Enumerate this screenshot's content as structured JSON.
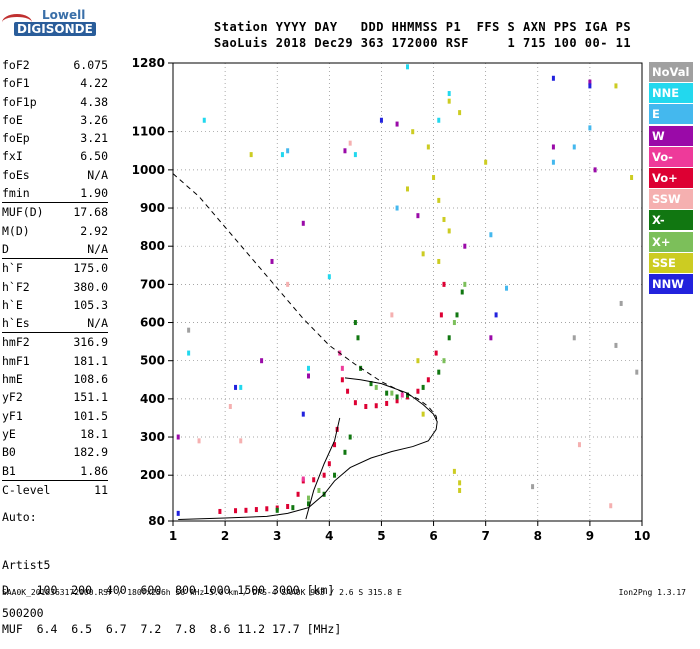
{
  "logo": {
    "line1": "Lowell",
    "line2": "DIGISONDE"
  },
  "header": {
    "row1": "Station YYYY DAY   DDD HHMMSS P1  FFS S AXN PPS IGA PS",
    "row2": "SaoLuis 2018 Dec29 363 172000 RSF     1 715 100 00- 11"
  },
  "params": [
    {
      "label": "foF2",
      "value": "6.075"
    },
    {
      "label": "foF1",
      "value": "4.22"
    },
    {
      "label": "foF1p",
      "value": "4.38"
    },
    {
      "label": "foE",
      "value": "3.26"
    },
    {
      "label": "foEp",
      "value": "3.21"
    },
    {
      "label": "fxI",
      "value": "6.50"
    },
    {
      "label": "foEs",
      "value": "N/A"
    },
    {
      "label": "fmin",
      "value": "1.90"
    },
    {
      "label": "MUF(D)",
      "value": "17.68"
    },
    {
      "label": "M(D)",
      "value": "2.92"
    },
    {
      "label": "D",
      "value": "N/A"
    },
    {
      "label": "h`F",
      "value": "175.0"
    },
    {
      "label": "h`F2",
      "value": "380.0"
    },
    {
      "label": "h`E",
      "value": "105.3"
    },
    {
      "label": "h`Es",
      "value": "N/A"
    },
    {
      "label": "hmF2",
      "value": "316.9"
    },
    {
      "label": "hmF1",
      "value": "181.1"
    },
    {
      "label": "hmE",
      "value": "108.6"
    },
    {
      "label": "yF2",
      "value": "151.1"
    },
    {
      "label": "yF1",
      "value": "101.5"
    },
    {
      "label": "yE",
      "value": "18.1"
    },
    {
      "label": "B0",
      "value": "182.9"
    },
    {
      "label": "B1",
      "value": "1.86"
    },
    {
      "label": "C-level",
      "value": "11"
    }
  ],
  "auto": {
    "line1": "Auto:",
    "line2": "Artist5",
    "line3": "500200"
  },
  "prop_table": {
    "row1": "D    100  200  400  600  800 1000 1500 3000 [km]",
    "row2": "MUF  6.4  6.5  6.7  7.2  7.8  8.6 11.2 17.7 [MHz]"
  },
  "footer": "SAA0K_2018363172000.RSF / 180fx256h 50 kHz 5.0 km / DPS-4 SAA0K 903 / 2.6 S 315.8 E",
  "footer_version": "Ion2Png 1.3.17",
  "legend": [
    {
      "label": "NoVal",
      "color": "#a0a0a0"
    },
    {
      "label": "NNE",
      "color": "#22d8ee"
    },
    {
      "label": "E",
      "color": "#44b8ee"
    },
    {
      "label": "W",
      "color": "#9a0aa8"
    },
    {
      "label": "Vo-",
      "color": "#ee3a9a"
    },
    {
      "label": "Vo+",
      "color": "#dd0033"
    },
    {
      "label": "SSW",
      "color": "#f5b0b0"
    },
    {
      "label": "X-",
      "color": "#117711"
    },
    {
      "label": "X+",
      "color": "#7cbf5a"
    },
    {
      "label": "SSE",
      "color": "#cccc22"
    },
    {
      "label": "NNW",
      "color": "#2222dd"
    }
  ],
  "chart_data": {
    "type": "scatter",
    "xlim": [
      1,
      10
    ],
    "ylim": [
      80,
      1280
    ],
    "x_ticks": [
      "1",
      "2",
      "3",
      "4",
      "5",
      "6",
      "7",
      "8",
      "9",
      "10"
    ],
    "y_ticks": [
      "80",
      "200",
      "300",
      "400",
      "500",
      "600",
      "700",
      "800",
      "900",
      "1000",
      "1100",
      "1280"
    ],
    "grid": true,
    "series": [
      {
        "name": "Vo+",
        "color": "#dd0033",
        "points": [
          [
            1.9,
            105
          ],
          [
            2.2,
            107
          ],
          [
            2.4,
            108
          ],
          [
            2.6,
            110
          ],
          [
            2.8,
            112
          ],
          [
            3.0,
            114
          ],
          [
            3.2,
            118
          ],
          [
            3.4,
            150
          ],
          [
            3.5,
            185
          ],
          [
            3.7,
            188
          ],
          [
            3.9,
            200
          ],
          [
            4.0,
            230
          ],
          [
            4.1,
            280
          ],
          [
            4.15,
            320
          ],
          [
            4.25,
            450
          ],
          [
            4.35,
            420
          ],
          [
            4.5,
            390
          ],
          [
            4.7,
            380
          ],
          [
            4.9,
            382
          ],
          [
            5.1,
            388
          ],
          [
            5.3,
            395
          ],
          [
            5.5,
            405
          ],
          [
            5.7,
            420
          ],
          [
            5.9,
            450
          ],
          [
            6.05,
            520
          ],
          [
            6.15,
            620
          ],
          [
            6.2,
            700
          ]
        ]
      },
      {
        "name": "X-",
        "color": "#117711",
        "points": [
          [
            3.0,
            108
          ],
          [
            3.3,
            115
          ],
          [
            3.6,
            125
          ],
          [
            3.9,
            150
          ],
          [
            4.1,
            200
          ],
          [
            4.3,
            260
          ],
          [
            4.4,
            300
          ],
          [
            4.5,
            600
          ],
          [
            4.55,
            560
          ],
          [
            4.6,
            480
          ],
          [
            4.8,
            440
          ],
          [
            5.1,
            415
          ],
          [
            5.3,
            405
          ],
          [
            5.5,
            410
          ],
          [
            5.8,
            430
          ],
          [
            6.1,
            470
          ],
          [
            6.3,
            560
          ],
          [
            6.45,
            620
          ],
          [
            6.55,
            680
          ]
        ]
      },
      {
        "name": "X+",
        "color": "#7cbf5a",
        "points": [
          [
            3.6,
            140
          ],
          [
            3.8,
            160
          ],
          [
            4.9,
            430
          ],
          [
            5.2,
            415
          ],
          [
            6.2,
            500
          ],
          [
            6.4,
            600
          ],
          [
            6.6,
            700
          ]
        ]
      },
      {
        "name": "Vo-",
        "color": "#ee3a9a",
        "points": [
          [
            4.2,
            520
          ],
          [
            4.25,
            480
          ],
          [
            3.5,
            190
          ],
          [
            5.4,
            410
          ]
        ]
      },
      {
        "name": "SSE",
        "color": "#cccc22",
        "points": [
          [
            5.6,
            1100
          ],
          [
            5.9,
            1060
          ],
          [
            6.0,
            980
          ],
          [
            6.1,
            920
          ],
          [
            6.2,
            870
          ],
          [
            6.3,
            840
          ],
          [
            6.5,
            1150
          ],
          [
            7.0,
            1020
          ],
          [
            9.5,
            1220
          ],
          [
            9.8,
            980
          ],
          [
            5.7,
            500
          ],
          [
            5.8,
            360
          ],
          [
            6.4,
            210
          ],
          [
            6.5,
            180
          ],
          [
            6.5,
            160
          ],
          [
            2.5,
            1040
          ],
          [
            5.5,
            950
          ],
          [
            6.3,
            1180
          ],
          [
            5.8,
            780
          ],
          [
            6.1,
            760
          ]
        ]
      },
      {
        "name": "NNE",
        "color": "#22d8ee",
        "points": [
          [
            1.6,
            1130
          ],
          [
            3.1,
            1040
          ],
          [
            4.5,
            1040
          ],
          [
            6.1,
            1130
          ],
          [
            6.3,
            1200
          ],
          [
            5.5,
            1270
          ],
          [
            2.3,
            430
          ],
          [
            3.6,
            480
          ],
          [
            4.0,
            720
          ],
          [
            1.3,
            520
          ]
        ]
      },
      {
        "name": "E",
        "color": "#44b8ee",
        "points": [
          [
            3.2,
            1050
          ],
          [
            5.3,
            900
          ],
          [
            7.4,
            690
          ],
          [
            8.3,
            1020
          ],
          [
            8.7,
            1060
          ],
          [
            7.1,
            830
          ],
          [
            9.0,
            1110
          ]
        ]
      },
      {
        "name": "W",
        "color": "#9a0aa8",
        "points": [
          [
            9.0,
            1230
          ],
          [
            8.3,
            1060
          ],
          [
            2.9,
            760
          ],
          [
            3.5,
            860
          ],
          [
            2.7,
            500
          ],
          [
            6.6,
            800
          ],
          [
            5.3,
            1120
          ],
          [
            9.1,
            1000
          ],
          [
            1.1,
            300
          ],
          [
            3.6,
            460
          ],
          [
            7.1,
            560
          ],
          [
            5.7,
            880
          ],
          [
            4.3,
            1050
          ]
        ]
      },
      {
        "name": "NNW",
        "color": "#2222dd",
        "points": [
          [
            9.0,
            1220
          ],
          [
            2.2,
            430
          ],
          [
            1.1,
            100
          ],
          [
            3.5,
            360
          ],
          [
            7.2,
            620
          ],
          [
            8.3,
            1240
          ],
          [
            5.0,
            1130
          ]
        ]
      },
      {
        "name": "SSW",
        "color": "#f5b0b0",
        "points": [
          [
            4.4,
            1070
          ],
          [
            2.3,
            290
          ],
          [
            9.4,
            120
          ],
          [
            8.8,
            280
          ],
          [
            3.2,
            700
          ],
          [
            5.2,
            620
          ],
          [
            1.5,
            290
          ],
          [
            2.1,
            380
          ]
        ]
      },
      {
        "name": "NoVal",
        "color": "#a0a0a0",
        "points": [
          [
            9.6,
            650
          ],
          [
            9.5,
            540
          ],
          [
            1.3,
            580
          ],
          [
            8.7,
            560
          ],
          [
            9.9,
            470
          ],
          [
            7.9,
            170
          ]
        ]
      }
    ],
    "profile_line": [
      [
        1.1,
        84
      ],
      [
        2.0,
        88
      ],
      [
        2.8,
        92
      ],
      [
        3.2,
        100
      ],
      [
        3.6,
        115
      ],
      [
        3.9,
        150
      ],
      [
        4.1,
        185
      ],
      [
        4.4,
        220
      ],
      [
        4.8,
        245
      ],
      [
        5.2,
        262
      ],
      [
        5.6,
        275
      ],
      [
        5.9,
        290
      ],
      [
        6.05,
        320
      ],
      [
        6.07,
        340
      ],
      [
        6.0,
        360
      ],
      [
        5.8,
        385
      ],
      [
        5.5,
        415
      ],
      [
        5.0,
        440
      ],
      [
        4.6,
        450
      ],
      [
        4.3,
        455
      ]
    ],
    "profile_line2": [
      [
        3.55,
        85
      ],
      [
        3.7,
        160
      ],
      [
        3.9,
        230
      ],
      [
        4.1,
        290
      ],
      [
        4.2,
        350
      ]
    ],
    "muf_dashed_line": [
      [
        1.0,
        990
      ],
      [
        1.5,
        930
      ],
      [
        2.0,
        850
      ],
      [
        2.5,
        770
      ],
      [
        3.0,
        690
      ],
      [
        3.5,
        610
      ],
      [
        4.0,
        540
      ],
      [
        4.5,
        490
      ],
      [
        5.0,
        445
      ],
      [
        5.4,
        418
      ],
      [
        5.7,
        400
      ],
      [
        5.9,
        380
      ],
      [
        6.05,
        355
      ],
      [
        6.07,
        340
      ]
    ]
  }
}
